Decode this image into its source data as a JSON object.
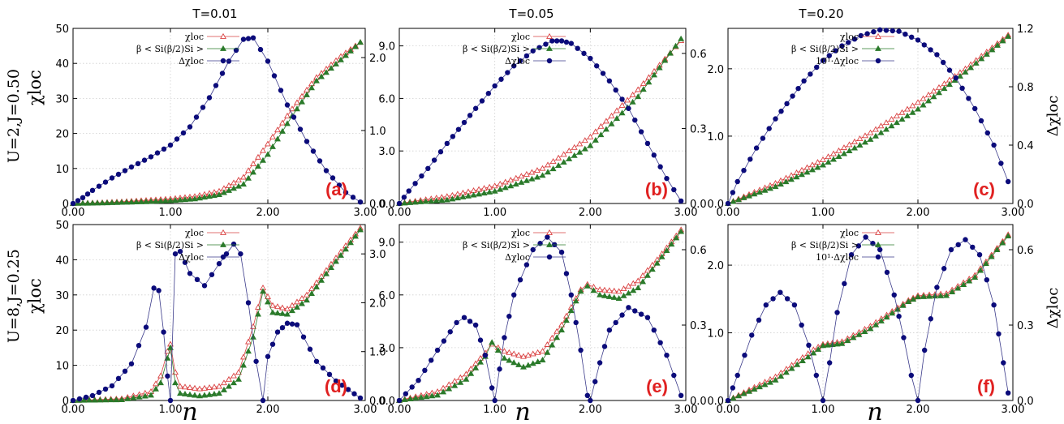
{
  "figure": {
    "column_titles": [
      "T=0.01",
      "T=0.05",
      "T=0.20"
    ],
    "row_labels": [
      "U=2,J=0.50",
      "U=8,J=0.25"
    ],
    "y_label_left": "χloc",
    "y_label_right": "Δχloc",
    "x_label": "n",
    "colors": {
      "chi_loc": "#d94040",
      "beta_term": "#2a7a2a",
      "delta": "#0b0b7a",
      "label": "#e02020"
    }
  },
  "chart_data": [
    {
      "type": "line",
      "panel": "(a)",
      "ylim_left": [
        0,
        50
      ],
      "yticks_left": [
        "0",
        "10",
        "20",
        "30",
        "40",
        "50"
      ],
      "ylim_right": [
        0,
        2.4
      ],
      "yticks_right": [
        "0.0",
        "1.0",
        "2.0"
      ],
      "xlim": [
        0,
        3
      ],
      "xticks": [
        "0.00",
        "1.00",
        "2.00",
        "3.00"
      ],
      "legend": [
        "χloc",
        "β < Si(β/2)Si >",
        "Δχloc"
      ],
      "series": [
        {
          "name": "χloc",
          "axis": "left",
          "x": [
            0,
            0.25,
            0.5,
            0.75,
            1.0,
            1.25,
            1.5,
            1.75,
            2.0,
            2.25,
            2.5,
            2.75,
            2.95
          ],
          "y": [
            0,
            0.2,
            0.5,
            0.9,
            1.3,
            2.0,
            3.5,
            7.5,
            17,
            27,
            36,
            42,
            46
          ]
        },
        {
          "name": "β < Si(β/2)Si >",
          "axis": "left",
          "x": [
            0,
            0.25,
            0.5,
            0.75,
            1.0,
            1.25,
            1.5,
            1.75,
            2.0,
            2.25,
            2.5,
            2.75,
            2.95
          ],
          "y": [
            0,
            0.1,
            0.3,
            0.5,
            0.8,
            1.3,
            2.5,
            5.5,
            14,
            25,
            35,
            41,
            46
          ]
        },
        {
          "name": "Δχloc",
          "axis": "right",
          "x": [
            0,
            0.1,
            0.2,
            0.4,
            0.6,
            0.8,
            1.0,
            1.2,
            1.4,
            1.6,
            1.75,
            1.85,
            2.0,
            2.2,
            2.4,
            2.6,
            2.8,
            2.95
          ],
          "y": [
            0,
            0.08,
            0.18,
            0.35,
            0.5,
            0.64,
            0.8,
            1.05,
            1.45,
            1.95,
            2.25,
            2.27,
            1.95,
            1.35,
            0.85,
            0.45,
            0.15,
            0.02
          ]
        }
      ]
    },
    {
      "type": "line",
      "panel": "(b)",
      "ylim_left": [
        0,
        10
      ],
      "yticks_left": [
        "0.0",
        "3.0",
        "6.0",
        "9.0"
      ],
      "ylim_right": [
        0,
        0.7
      ],
      "yticks_right": [
        "0.0",
        "0.3",
        "0.6"
      ],
      "xlim": [
        0,
        3
      ],
      "xticks": [
        "0.00",
        "1.00",
        "2.00",
        "3.00"
      ],
      "legend": [
        "χloc",
        "β < Si(β/2)Si >",
        "Δχloc"
      ],
      "series": [
        {
          "name": "χloc",
          "axis": "left",
          "x": [
            0,
            0.5,
            1.0,
            1.5,
            2.0,
            2.5,
            2.95
          ],
          "y": [
            0,
            0.4,
            1.0,
            2.0,
            3.8,
            6.5,
            9.3
          ]
        },
        {
          "name": "β < Si(β/2)Si >",
          "axis": "left",
          "x": [
            0,
            0.5,
            1.0,
            1.5,
            2.0,
            2.5,
            2.95
          ],
          "y": [
            0,
            0.2,
            0.7,
            1.6,
            3.3,
            6.1,
            9.4
          ]
        },
        {
          "name": "Δχloc",
          "axis": "right",
          "x": [
            0,
            0.1,
            0.3,
            0.5,
            0.8,
            1.0,
            1.2,
            1.4,
            1.6,
            1.7,
            1.8,
            2.0,
            2.2,
            2.4,
            2.6,
            2.8,
            2.95
          ],
          "y": [
            0,
            0.05,
            0.14,
            0.24,
            0.38,
            0.47,
            0.55,
            0.61,
            0.65,
            0.65,
            0.64,
            0.58,
            0.49,
            0.38,
            0.24,
            0.1,
            0.01
          ]
        }
      ]
    },
    {
      "type": "line",
      "panel": "(c)",
      "ylim_left": [
        0,
        2.6
      ],
      "yticks_left": [
        "0.0",
        "1.0",
        "2.0"
      ],
      "ylim_right": [
        0,
        1.2
      ],
      "yticks_right": [
        "0.0",
        "0.4",
        "0.8",
        "1.2"
      ],
      "xlim": [
        0,
        3
      ],
      "xticks": [
        "0.00",
        "1.00",
        "2.00",
        "3.00"
      ],
      "legend": [
        "χloc",
        "β < Si(β/2)Si >",
        "10¹·Δχloc"
      ],
      "series": [
        {
          "name": "χloc",
          "axis": "left",
          "x": [
            0,
            0.5,
            1.0,
            1.5,
            2.0,
            2.5,
            2.95
          ],
          "y": [
            0,
            0.3,
            0.65,
            1.05,
            1.5,
            2.0,
            2.5
          ]
        },
        {
          "name": "β < Si(β/2)Si >",
          "axis": "left",
          "x": [
            0,
            0.5,
            1.0,
            1.5,
            2.0,
            2.5,
            2.95
          ],
          "y": [
            0,
            0.25,
            0.57,
            0.95,
            1.4,
            1.95,
            2.48
          ]
        },
        {
          "name": "10¹·Δχloc",
          "axis": "right",
          "x": [
            0,
            0.1,
            0.3,
            0.5,
            0.8,
            1.0,
            1.2,
            1.4,
            1.6,
            1.8,
            2.0,
            2.2,
            2.4,
            2.6,
            2.8,
            2.95
          ],
          "y": [
            0,
            0.15,
            0.38,
            0.58,
            0.84,
            0.98,
            1.08,
            1.15,
            1.19,
            1.18,
            1.12,
            1.02,
            0.86,
            0.65,
            0.4,
            0.15
          ]
        }
      ]
    },
    {
      "type": "line",
      "panel": "(d)",
      "ylim_left": [
        0,
        50
      ],
      "yticks_left": [
        "0",
        "10",
        "20",
        "30",
        "40",
        "50"
      ],
      "ylim_right": [
        0,
        3.6
      ],
      "yticks_right": [
        "0.0",
        "1.0",
        "2.0",
        "3.0"
      ],
      "xlim": [
        0,
        3
      ],
      "xticks": [
        "0.00",
        "1.00",
        "2.00",
        "3.00"
      ],
      "legend": [
        "χloc",
        "β < Si(β/2)Si >",
        "Δχloc"
      ],
      "series": [
        {
          "name": "χloc",
          "axis": "left",
          "x": [
            0,
            0.5,
            0.8,
            0.9,
            0.97,
            1.0,
            1.05,
            1.1,
            1.3,
            1.5,
            1.7,
            1.85,
            1.95,
            2.05,
            2.2,
            2.4,
            2.6,
            2.8,
            2.95
          ],
          "y": [
            0,
            0.5,
            2.5,
            7,
            14,
            16,
            8,
            4,
            3.3,
            4,
            8,
            21,
            32,
            27,
            26,
            30,
            37,
            44,
            49
          ]
        },
        {
          "name": "β < Si(β/2)Si >",
          "axis": "left",
          "x": [
            0,
            0.5,
            0.8,
            0.9,
            0.97,
            1.0,
            1.05,
            1.1,
            1.3,
            1.5,
            1.7,
            1.85,
            1.95,
            2.05,
            2.2,
            2.4,
            2.6,
            2.8,
            2.95
          ],
          "y": [
            0,
            0.2,
            1.5,
            5,
            12,
            15,
            5,
            2,
            1.3,
            2,
            6,
            18,
            31,
            25,
            24.5,
            28.5,
            36,
            43,
            48.5
          ]
        },
        {
          "name": "Δχloc",
          "axis": "right",
          "x": [
            0,
            0.2,
            0.4,
            0.6,
            0.75,
            0.83,
            0.88,
            0.93,
            0.97,
            1.0,
            1.05,
            1.1,
            1.2,
            1.35,
            1.5,
            1.65,
            1.72,
            1.8,
            1.88,
            1.95,
            2.0,
            2.1,
            2.2,
            2.3,
            2.5,
            2.7,
            2.95
          ],
          "y": [
            0,
            0.1,
            0.3,
            0.75,
            1.5,
            2.3,
            2.25,
            1.4,
            0.5,
            0,
            3.0,
            3.05,
            2.6,
            2.35,
            2.8,
            3.2,
            3.0,
            2.0,
            0.8,
            0,
            0.9,
            1.4,
            1.58,
            1.55,
            0.8,
            0.4,
            0.05
          ]
        }
      ]
    },
    {
      "type": "line",
      "panel": "(e)",
      "ylim_left": [
        0,
        10
      ],
      "yticks_left": [
        "0.0",
        "3.0",
        "6.0",
        "9.0"
      ],
      "ylim_right": [
        0,
        0.7
      ],
      "yticks_right": [
        "0.0",
        "0.3",
        "0.6"
      ],
      "xlim": [
        0,
        3
      ],
      "xticks": [
        "0.00",
        "1.00",
        "2.00",
        "3.00"
      ],
      "legend": [
        "χloc",
        "β < Si(β/2)Si >",
        "Δχloc"
      ],
      "series": [
        {
          "name": "χloc",
          "axis": "left",
          "x": [
            0,
            0.4,
            0.7,
            0.9,
            0.97,
            1.1,
            1.3,
            1.5,
            1.7,
            1.9,
            1.97,
            2.1,
            2.3,
            2.5,
            2.7,
            2.95
          ],
          "y": [
            0,
            0.5,
            1.5,
            2.7,
            3.2,
            2.8,
            2.5,
            2.8,
            4.3,
            6.3,
            6.6,
            6.3,
            6.2,
            6.8,
            8.0,
            9.7
          ]
        },
        {
          "name": "β < Si(β/2)Si >",
          "axis": "left",
          "x": [
            0,
            0.4,
            0.7,
            0.9,
            0.97,
            1.1,
            1.3,
            1.5,
            1.7,
            1.9,
            1.97,
            2.1,
            2.3,
            2.5,
            2.7,
            2.95
          ],
          "y": [
            0,
            0.3,
            1.2,
            2.5,
            3.3,
            2.4,
            1.9,
            2.3,
            4.0,
            6.2,
            6.5,
            6.0,
            5.8,
            6.4,
            7.8,
            9.6
          ]
        },
        {
          "name": "Δχloc",
          "axis": "right",
          "x": [
            0,
            0.2,
            0.4,
            0.6,
            0.68,
            0.8,
            0.9,
            0.97,
            1.0,
            1.1,
            1.2,
            1.4,
            1.55,
            1.7,
            1.8,
            1.9,
            1.97,
            2.0,
            2.1,
            2.2,
            2.4,
            2.6,
            2.8,
            2.95
          ],
          "y": [
            0,
            0.08,
            0.2,
            0.31,
            0.33,
            0.3,
            0.18,
            0.05,
            0,
            0.25,
            0.42,
            0.6,
            0.65,
            0.59,
            0.42,
            0.2,
            0.02,
            0,
            0.15,
            0.28,
            0.37,
            0.33,
            0.18,
            0.02
          ]
        }
      ]
    },
    {
      "type": "line",
      "panel": "(f)",
      "ylim_left": [
        0,
        2.6
      ],
      "yticks_left": [
        "0.0",
        "1.0",
        "2.0"
      ],
      "ylim_right": [
        0,
        0.7
      ],
      "yticks_right": [
        "0.0",
        "0.3",
        "0.6"
      ],
      "xlim": [
        0,
        3
      ],
      "xticks": [
        "0.00",
        "1.00",
        "2.00",
        "3.00"
      ],
      "legend": [
        "χloc",
        "β < Si(β/2)Si >",
        "10¹·Δχloc"
      ],
      "series": [
        {
          "name": "χloc",
          "axis": "left",
          "x": [
            0,
            0.5,
            0.9,
            1.0,
            1.2,
            1.5,
            1.9,
            2.0,
            2.3,
            2.6,
            2.95
          ],
          "y": [
            0,
            0.35,
            0.75,
            0.83,
            0.87,
            1.1,
            1.48,
            1.55,
            1.58,
            1.85,
            2.45
          ]
        },
        {
          "name": "β < Si(β/2)Si >",
          "axis": "left",
          "x": [
            0,
            0.5,
            0.9,
            1.0,
            1.2,
            1.5,
            1.9,
            2.0,
            2.3,
            2.6,
            2.95
          ],
          "y": [
            0,
            0.3,
            0.7,
            0.81,
            0.84,
            1.06,
            1.46,
            1.53,
            1.55,
            1.82,
            2.43
          ]
        },
        {
          "name": "10¹·Δχloc",
          "axis": "right",
          "x": [
            0,
            0.1,
            0.25,
            0.4,
            0.55,
            0.7,
            0.85,
            0.93,
            1.0,
            1.07,
            1.15,
            1.3,
            1.45,
            1.6,
            1.75,
            1.85,
            1.93,
            2.0,
            2.07,
            2.2,
            2.35,
            2.5,
            2.65,
            2.8,
            2.9,
            2.95
          ],
          "y": [
            0,
            0.1,
            0.26,
            0.38,
            0.43,
            0.38,
            0.22,
            0.1,
            0,
            0.15,
            0.35,
            0.58,
            0.65,
            0.6,
            0.42,
            0.25,
            0.1,
            0,
            0.2,
            0.45,
            0.6,
            0.64,
            0.58,
            0.38,
            0.15,
            0.03
          ]
        }
      ]
    }
  ]
}
